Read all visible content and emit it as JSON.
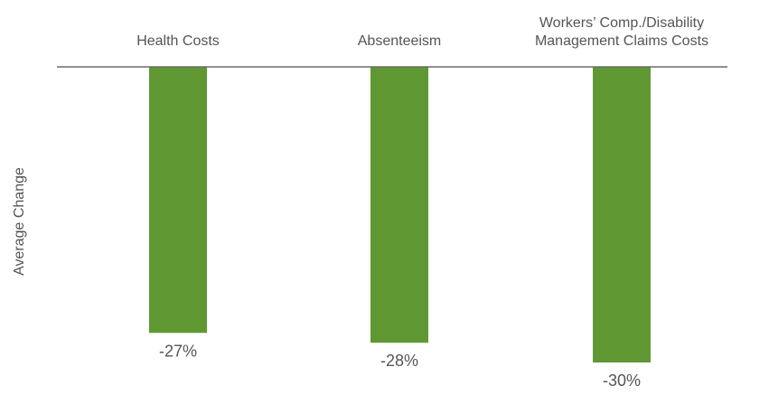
{
  "chart_data": {
    "type": "bar",
    "ylabel": "Average Change",
    "categories": [
      [
        "Health Costs"
      ],
      [
        "Absenteeism"
      ],
      [
        "Workers’ Comp./Disability",
        "Management Claims Costs"
      ]
    ],
    "values": [
      -27,
      -28,
      -30
    ],
    "value_labels": [
      "-27%",
      "-28%",
      "-30%"
    ],
    "ylim": [
      -30,
      0
    ],
    "axis_position": "top",
    "grid": false,
    "bar_color": "#5f9833",
    "axis_color": "#6b6b6b",
    "text_color": "#555555"
  }
}
